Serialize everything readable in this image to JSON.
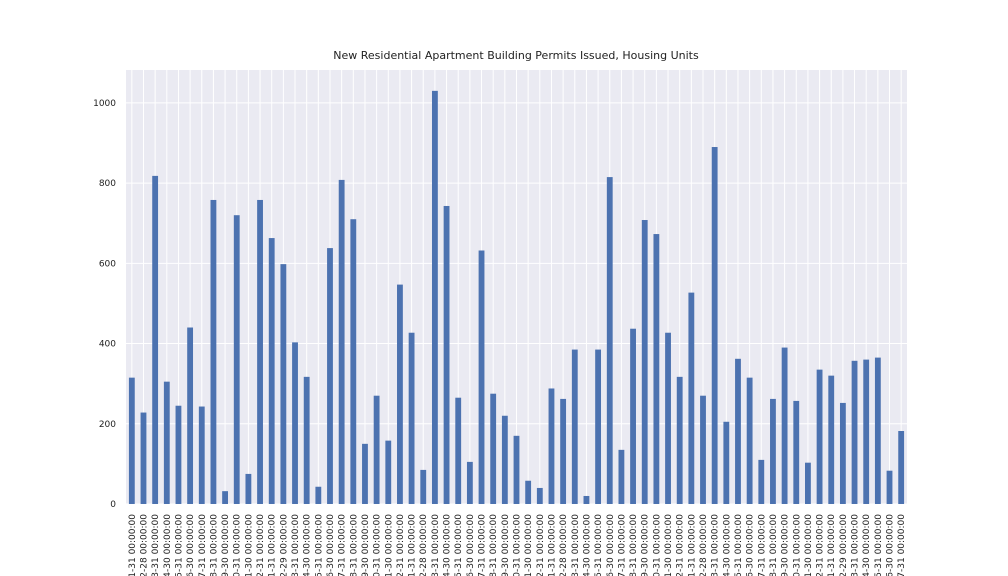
{
  "chart_data": {
    "type": "bar",
    "title": "New Residential Apartment Building Permits Issued, Housing Units",
    "categories": [
      "1-31 00:00:00",
      "2-28 00:00:00",
      "3-31 00:00:00",
      "4-30 00:00:00",
      "5-31 00:00:00",
      "6-30 00:00:00",
      "7-31 00:00:00",
      "8-31 00:00:00",
      "9-30 00:00:00",
      "0-31 00:00:00",
      "1-30 00:00:00",
      "2-31 00:00:00",
      "1-31 00:00:00",
      "2-29 00:00:00",
      "3-31 00:00:00",
      "4-30 00:00:00",
      "5-31 00:00:00",
      "6-30 00:00:00",
      "7-31 00:00:00",
      "8-31 00:00:00",
      "9-30 00:00:00",
      "0-31 00:00:00",
      "1-30 00:00:00",
      "2-31 00:00:00",
      "1-31 00:00:00",
      "2-28 00:00:00",
      "3-31 00:00:00",
      "4-30 00:00:00",
      "5-31 00:00:00",
      "6-30 00:00:00",
      "7-31 00:00:00",
      "8-31 00:00:00",
      "9-30 00:00:00",
      "0-31 00:00:00",
      "1-30 00:00:00",
      "2-31 00:00:00",
      "1-31 00:00:00",
      "2-28 00:00:00",
      "3-31 00:00:00",
      "4-30 00:00:00",
      "5-31 00:00:00",
      "6-30 00:00:00",
      "7-31 00:00:00",
      "8-31 00:00:00",
      "9-30 00:00:00",
      "0-31 00:00:00",
      "1-30 00:00:00",
      "2-31 00:00:00",
      "1-31 00:00:00",
      "2-28 00:00:00",
      "3-31 00:00:00",
      "4-30 00:00:00",
      "5-31 00:00:00",
      "6-30 00:00:00",
      "7-31 00:00:00",
      "8-31 00:00:00",
      "9-30 00:00:00",
      "0-31 00:00:00",
      "1-30 00:00:00",
      "2-31 00:00:00",
      "1-31 00:00:00",
      "2-29 00:00:00",
      "3-31 00:00:00",
      "4-30 00:00:00",
      "5-31 00:00:00",
      "6-30 00:00:00",
      "7-31 00:00:00"
    ],
    "values": [
      315,
      228,
      818,
      305,
      245,
      440,
      243,
      758,
      32,
      720,
      75,
      758,
      663,
      598,
      403,
      317,
      43,
      638,
      808,
      710,
      150,
      270,
      158,
      547,
      427,
      85,
      1030,
      743,
      265,
      105,
      632,
      275,
      220,
      170,
      58,
      40,
      288,
      262,
      385,
      20,
      385,
      815,
      135,
      437,
      708,
      673,
      427,
      317,
      527,
      270,
      890,
      205,
      362,
      315,
      110,
      262,
      390,
      257,
      103,
      335,
      320,
      252,
      357,
      360,
      365,
      83,
      182
    ],
    "color": "#4c72b0",
    "ylim": [
      0,
      1082
    ],
    "yticks": [
      0,
      200,
      400,
      600,
      800,
      1000
    ],
    "grid": true
  }
}
